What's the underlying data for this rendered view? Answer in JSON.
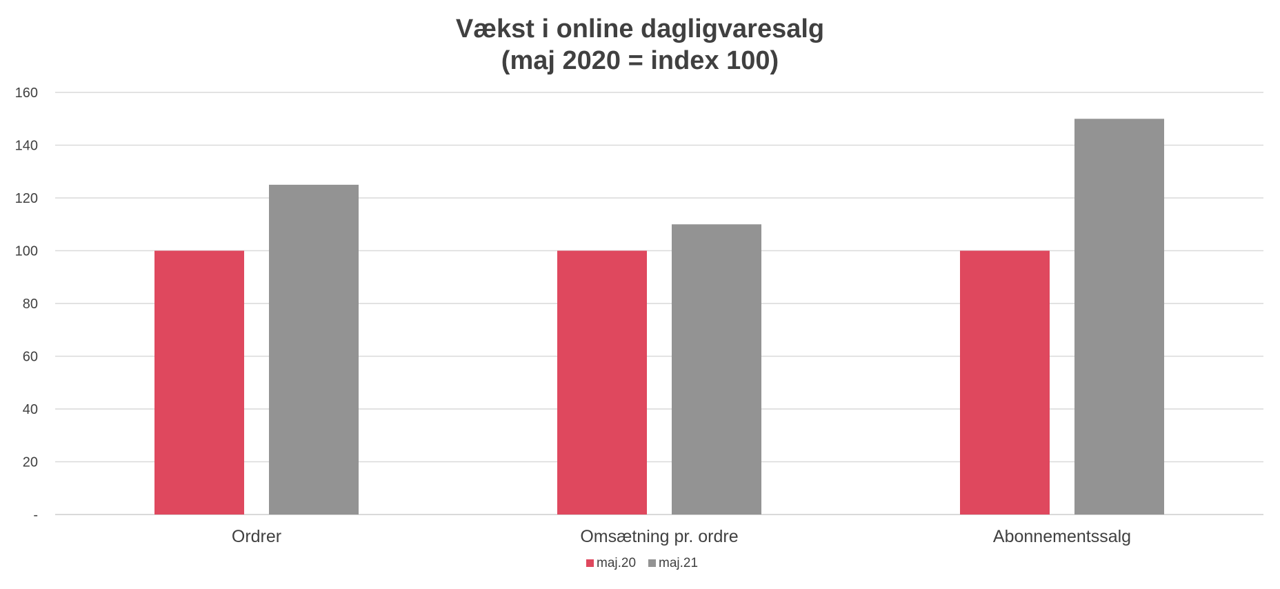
{
  "chart_data": {
    "type": "bar",
    "title": "Vækst i online dagligvaresalg",
    "subtitle": "(maj 2020 = index 100)",
    "categories": [
      "Ordrer",
      "Omsætning pr. ordre",
      "Abonnementssalg"
    ],
    "series": [
      {
        "name": "maj.20",
        "values": [
          100,
          100,
          100
        ],
        "color": "#df485e"
      },
      {
        "name": "maj.21",
        "values": [
          125,
          110,
          150
        ],
        "color": "#939393"
      }
    ],
    "ylim": [
      0,
      160
    ],
    "yticks": [
      0,
      20,
      40,
      60,
      80,
      100,
      120,
      140,
      160
    ],
    "ytick_labels": [
      "-",
      "20",
      "40",
      "60",
      "80",
      "100",
      "120",
      "140",
      "160"
    ],
    "xlabel": "",
    "ylabel": "",
    "grid": true,
    "legend_position": "bottom"
  }
}
